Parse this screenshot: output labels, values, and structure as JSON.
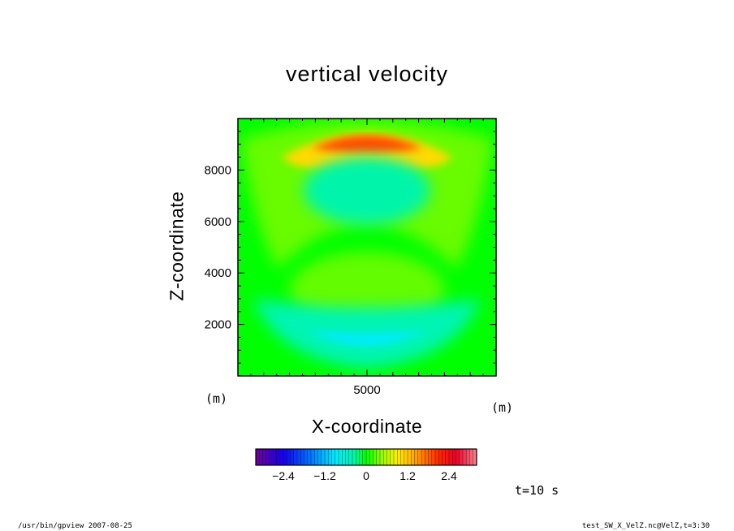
{
  "chart_data": {
    "type": "heatmap",
    "title": "vertical velocity",
    "xlabel": "X-coordinate",
    "ylabel": "Z-coordinate",
    "x_unit": "(m)",
    "y_unit": "(m)",
    "xlim": [
      0,
      10000
    ],
    "ylim": [
      0,
      10000
    ],
    "x_ticks": [
      {
        "value": 5000,
        "label": "5000"
      }
    ],
    "y_ticks": [
      {
        "value": 2000,
        "label": "2000"
      },
      {
        "value": 4000,
        "label": "4000"
      },
      {
        "value": 6000,
        "label": "6000"
      },
      {
        "value": 8000,
        "label": "8000"
      }
    ],
    "features": [
      {
        "name": "positive arc",
        "center_z": 8900,
        "peak_value": 1.9
      },
      {
        "name": "negative arc",
        "center_z": 1400,
        "peak_value": -0.9
      },
      {
        "name": "weak negative core",
        "center_z": 7200,
        "peak_value": -0.35
      },
      {
        "name": "weak positive core",
        "center_z": 3300,
        "peak_value": 0.3
      }
    ],
    "colorbar": {
      "min": -3.2,
      "max": 3.2,
      "step": 0.1,
      "tick_labels": [
        "−2.4",
        "−1.2",
        "0",
        "1.2",
        "2.4"
      ],
      "tick_values": [
        -2.4,
        -1.2,
        0,
        1.2,
        2.4
      ]
    }
  },
  "annotations": {
    "time": "t=10 s",
    "footer_left": "/usr/bin/gpview   2007-08-25",
    "footer_right": "test_SW_X_VelZ.nc@VelZ,t=3:30"
  }
}
